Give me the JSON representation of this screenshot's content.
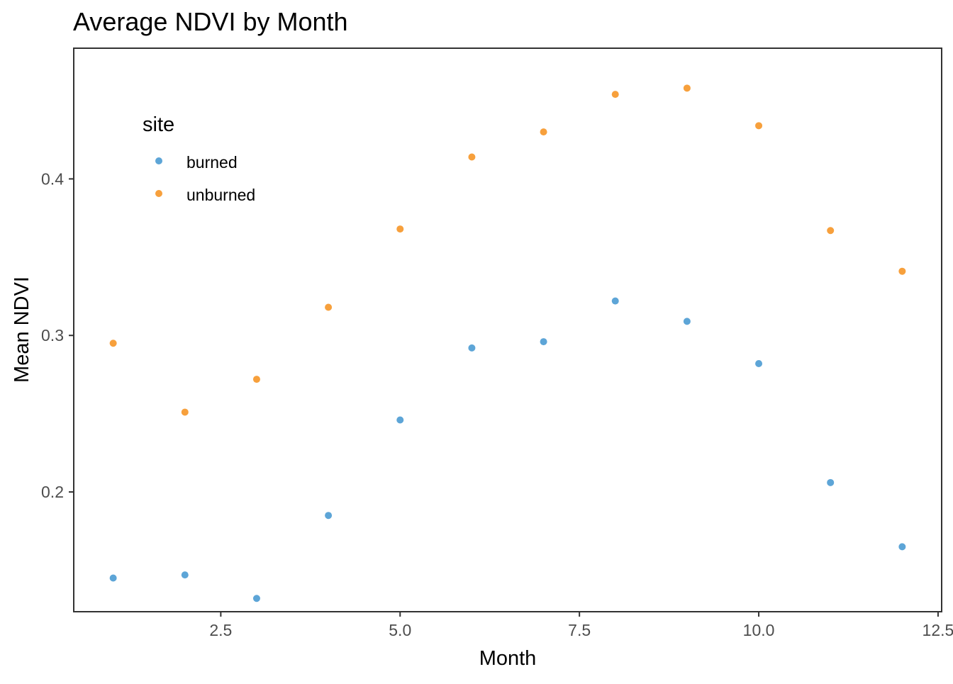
{
  "chart_data": {
    "type": "scatter",
    "title": "Average NDVI by Month",
    "xlabel": "Month",
    "ylabel": "Mean NDVI",
    "xlim": [
      0.45,
      12.55
    ],
    "ylim": [
      0.1235,
      0.4835
    ],
    "x_ticks": [
      2.5,
      5.0,
      7.5,
      10.0,
      12.5
    ],
    "x_tick_labels": [
      "2.5",
      "5.0",
      "7.5",
      "10.0",
      "12.5"
    ],
    "y_ticks": [
      0.2,
      0.3,
      0.4
    ],
    "y_tick_labels": [
      "0.2",
      "0.3",
      "0.4"
    ],
    "grid": false,
    "legend": {
      "title": "site",
      "position": "top-left"
    },
    "x": [
      1,
      2,
      3,
      4,
      5,
      6,
      7,
      8,
      9,
      10,
      11,
      12
    ],
    "series": [
      {
        "name": "burned",
        "color": "#5da5d7",
        "values": [
          0.145,
          0.147,
          0.132,
          0.185,
          0.246,
          0.292,
          0.296,
          0.322,
          0.309,
          0.282,
          0.206,
          0.165
        ]
      },
      {
        "name": "unburned",
        "color": "#f7a03c",
        "values": [
          0.295,
          0.251,
          0.272,
          0.318,
          0.368,
          0.414,
          0.43,
          0.454,
          0.458,
          0.434,
          0.367,
          0.341
        ]
      }
    ]
  }
}
